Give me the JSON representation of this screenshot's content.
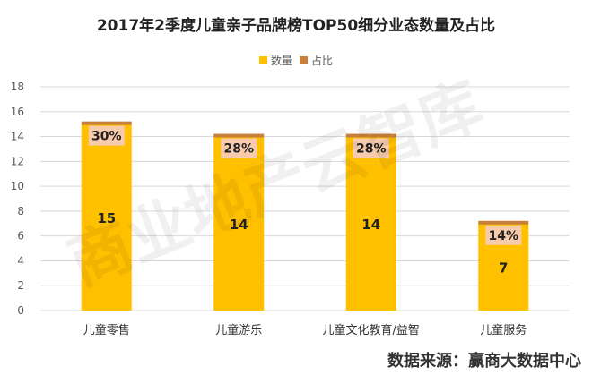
{
  "title": "2017年2季度儿童亲子品牌榜TOP50细分业态数量及占比",
  "watermark": "商业地产云智库",
  "source": "数据来源：赢商大数据中心",
  "colors": {
    "bar": "#FFC000",
    "share_cap": "#C9813A",
    "label_box": "#F8CBAD",
    "gridline": "#D9D9D9",
    "axis_text": "#595959",
    "title_text": "#222222"
  },
  "chart_data": {
    "type": "bar",
    "title": "2017年2季度儿童亲子品牌榜TOP50细分业态数量及占比",
    "categories": [
      "儿童零售",
      "儿童游乐",
      "儿童文化教育/益智",
      "儿童服务"
    ],
    "series": [
      {
        "name": "数量",
        "values": [
          15,
          14,
          14,
          7
        ],
        "value_labels": [
          "15",
          "14",
          "14",
          "7"
        ]
      },
      {
        "name": "占比",
        "values": [
          30,
          28,
          28,
          14
        ],
        "value_labels": [
          "30%",
          "28%",
          "28%",
          "14%"
        ]
      }
    ],
    "ylim": [
      0,
      18
    ],
    "yticks": [
      0,
      2,
      4,
      6,
      8,
      10,
      12,
      14,
      16,
      18
    ],
    "grid": true,
    "legend": "top-center"
  }
}
